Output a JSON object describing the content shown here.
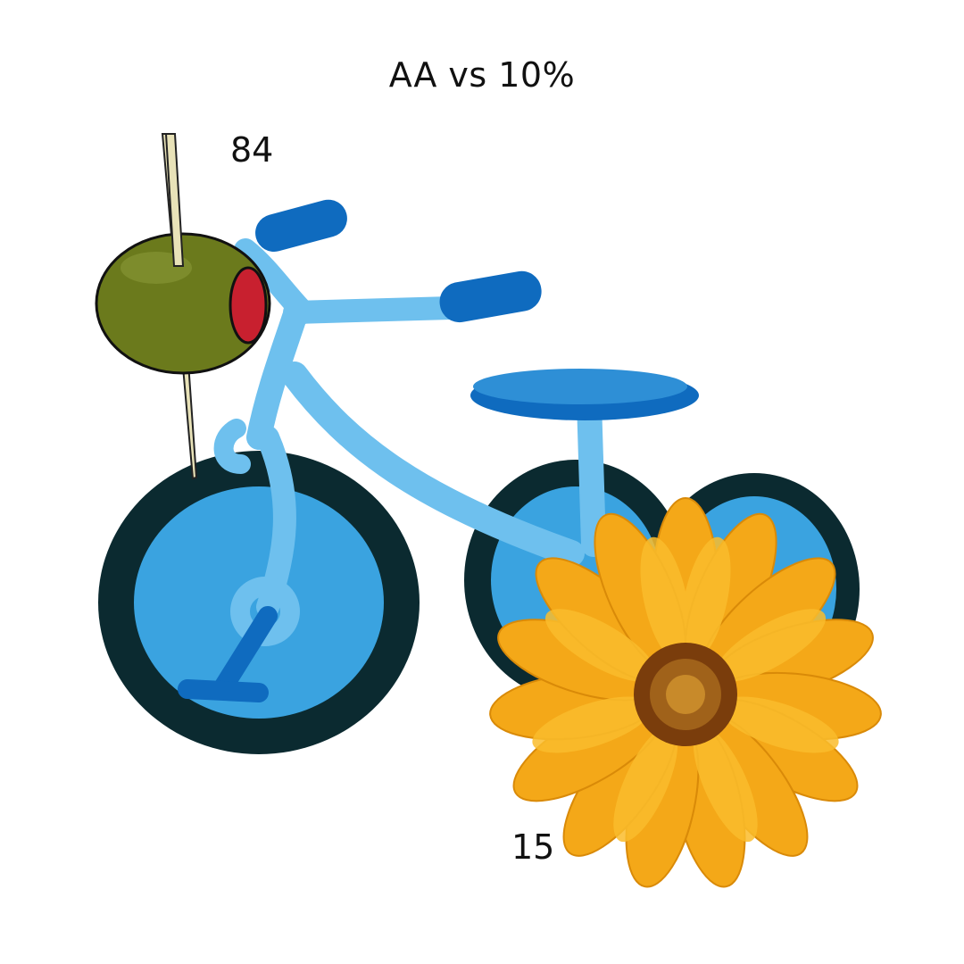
{
  "title": "AA vs 10%",
  "labels": {
    "olive_value": "84",
    "flower_value": "15"
  },
  "illustrations": {
    "bicycle": "bicycle-illustration",
    "olive": "olive-with-toothpick-illustration",
    "flower": "yellow-daisy-flower-photo"
  },
  "colors": {
    "frame": "#6ec0ee",
    "tire": "#0b2a30",
    "wheel_fill": "#3aa3e0",
    "handle_seat": "#0f6bbf",
    "olive": "#6b7a1c",
    "pimento": "#c8202f",
    "toothpick": "#e8e2b8",
    "petal": "#f4a818",
    "flower_center": "#7a3d0c"
  }
}
